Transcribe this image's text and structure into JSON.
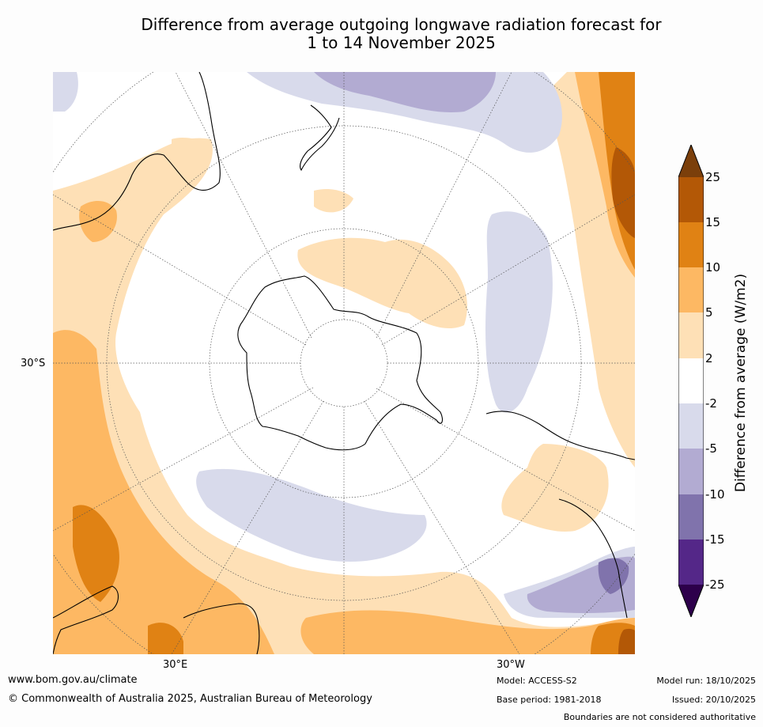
{
  "title": {
    "line1": "Difference from average outgoing longwave radiation forecast for",
    "line2": "1 to 14 November 2025"
  },
  "map": {
    "projection": "south-polar-stereographic",
    "labels": {
      "lat_30s": "30°S",
      "lon_30e": "30°E",
      "lon_30w": "30°W"
    }
  },
  "colorbar": {
    "title": "Difference from average (W/m2)",
    "ticks": [
      "25",
      "15",
      "10",
      "5",
      "2",
      "-2",
      "-5",
      "-10",
      "-15",
      "-25"
    ],
    "colors": [
      "#7b3f0b",
      "#b35806",
      "#e08214",
      "#fdb863",
      "#fee0b6",
      "#ffffff",
      "#d8daeb",
      "#b2abd2",
      "#8073ac",
      "#542788",
      "#2d004b"
    ]
  },
  "footer": {
    "url": "www.bom.gov.au/climate",
    "copyright": "© Commonwealth of Australia 2025, Australian Bureau of Meteorology",
    "model": "Model: ACCESS-S2",
    "base_period": "Base period: 1981-2018",
    "model_run": "Model run: 18/10/2025",
    "issued": "Issued: 20/10/2025",
    "boundaries": "Boundaries are not considered authoritative"
  }
}
